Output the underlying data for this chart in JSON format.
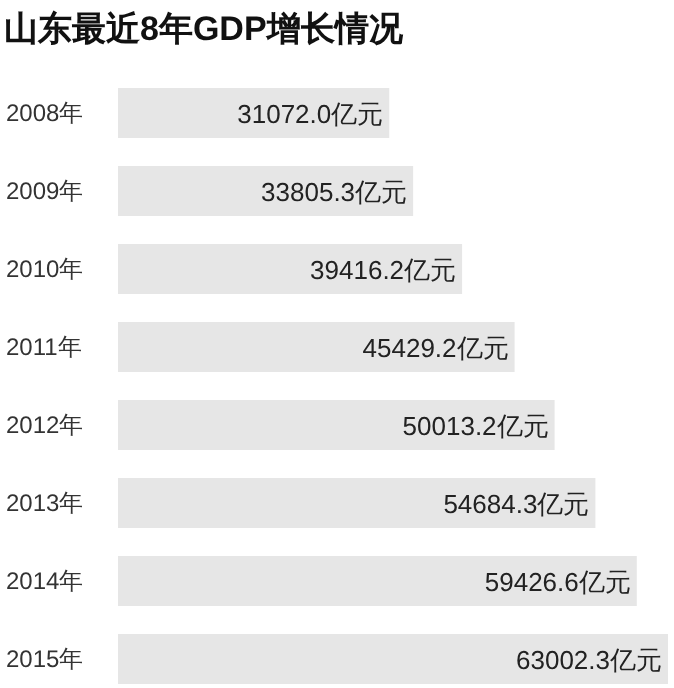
{
  "chart_data": {
    "type": "bar",
    "orientation": "horizontal",
    "title": "山东最近8年GDP增长情况",
    "categories": [
      "2008年",
      "2009年",
      "2010年",
      "2011年",
      "2012年",
      "2013年",
      "2014年",
      "2015年"
    ],
    "values": [
      31072.0,
      33805.3,
      39416.2,
      45429.2,
      50013.2,
      54684.3,
      59426.6,
      63002.3
    ],
    "value_labels": [
      "31072.0亿元",
      "33805.3亿元",
      "39416.2亿元",
      "45429.2亿元",
      "50013.2亿元",
      "54684.3亿元",
      "59426.6亿元",
      "63002.3亿元"
    ],
    "color": "#e6e6e6"
  }
}
